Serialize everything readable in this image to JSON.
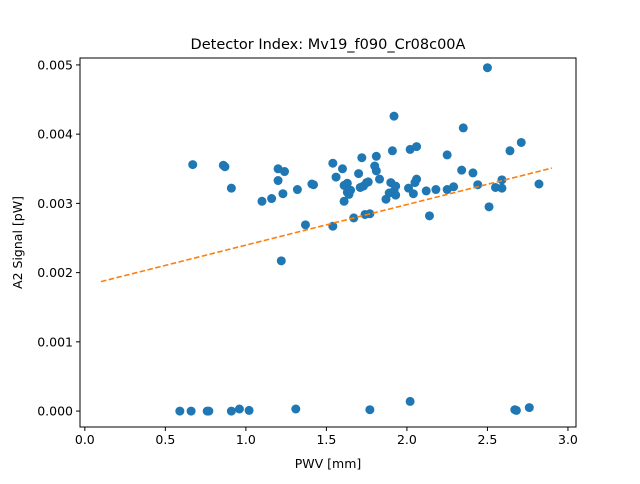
{
  "chart_data": {
    "type": "scatter",
    "title": "Detector Index: Mv19_f090_Cr08c00A",
    "xlabel": "PWV [mm]",
    "ylabel": "A2 Signal [pW]",
    "xlim": [
      -0.03,
      3.05
    ],
    "ylim": [
      -0.00023,
      0.0051
    ],
    "x_ticks": [
      0.0,
      0.5,
      1.0,
      1.5,
      2.0,
      2.5,
      3.0
    ],
    "x_tick_labels": [
      "0.0",
      "0.5",
      "1.0",
      "1.5",
      "2.0",
      "2.5",
      "3.0"
    ],
    "y_ticks": [
      0.0,
      0.001,
      0.002,
      0.003,
      0.004,
      0.005
    ],
    "y_tick_labels": [
      "0.000",
      "0.001",
      "0.002",
      "0.003",
      "0.004",
      "0.005"
    ],
    "grid": false,
    "series": [
      {
        "name": "measurements",
        "kind": "points",
        "color": "#1f77b4",
        "points": [
          [
            0.59,
            0.0
          ],
          [
            0.66,
            0.0
          ],
          [
            0.76,
            0.0
          ],
          [
            0.77,
            0.0
          ],
          [
            0.91,
            0.0
          ],
          [
            0.96,
            3e-05
          ],
          [
            1.02,
            1e-05
          ],
          [
            1.31,
            3e-05
          ],
          [
            1.77,
            2e-05
          ],
          [
            2.02,
            0.00014
          ],
          [
            2.67,
            2e-05
          ],
          [
            2.68,
            1e-05
          ],
          [
            2.76,
            5e-05
          ],
          [
            0.67,
            0.00356
          ],
          [
            0.86,
            0.00355
          ],
          [
            0.87,
            0.00353
          ],
          [
            0.91,
            0.00322
          ],
          [
            1.1,
            0.00303
          ],
          [
            1.16,
            0.00307
          ],
          [
            1.2,
            0.0035
          ],
          [
            1.2,
            0.00333
          ],
          [
            1.22,
            0.00217
          ],
          [
            1.23,
            0.00314
          ],
          [
            1.24,
            0.00346
          ],
          [
            1.32,
            0.0032
          ],
          [
            1.37,
            0.00269
          ],
          [
            1.41,
            0.00328
          ],
          [
            1.42,
            0.00327
          ],
          [
            1.54,
            0.00358
          ],
          [
            1.54,
            0.00267
          ],
          [
            1.56,
            0.00338
          ],
          [
            1.6,
            0.0035
          ],
          [
            1.61,
            0.00326
          ],
          [
            1.61,
            0.00303
          ],
          [
            1.63,
            0.00329
          ],
          [
            1.63,
            0.00316
          ],
          [
            1.64,
            0.00313
          ],
          [
            1.65,
            0.00319
          ],
          [
            1.67,
            0.00279
          ],
          [
            1.7,
            0.00343
          ],
          [
            1.71,
            0.00323
          ],
          [
            1.72,
            0.00366
          ],
          [
            1.73,
            0.00325
          ],
          [
            1.74,
            0.00284
          ],
          [
            1.75,
            0.0033
          ],
          [
            1.76,
            0.00331
          ],
          [
            1.77,
            0.00285
          ],
          [
            1.8,
            0.00354
          ],
          [
            1.81,
            0.00347
          ],
          [
            1.81,
            0.00368
          ],
          [
            1.83,
            0.00335
          ],
          [
            1.87,
            0.00306
          ],
          [
            1.89,
            0.00315
          ],
          [
            1.9,
            0.0033
          ],
          [
            1.91,
            0.00376
          ],
          [
            1.92,
            0.00426
          ],
          [
            1.92,
            0.00318
          ],
          [
            1.93,
            0.00312
          ],
          [
            1.93,
            0.00325
          ],
          [
            2.01,
            0.00322
          ],
          [
            2.02,
            0.00378
          ],
          [
            2.04,
            0.00314
          ],
          [
            2.05,
            0.0033
          ],
          [
            2.06,
            0.00335
          ],
          [
            2.06,
            0.00382
          ],
          [
            2.12,
            0.00318
          ],
          [
            2.14,
            0.00282
          ],
          [
            2.18,
            0.0032
          ],
          [
            2.25,
            0.0037
          ],
          [
            2.25,
            0.0032
          ],
          [
            2.29,
            0.00324
          ],
          [
            2.34,
            0.00348
          ],
          [
            2.35,
            0.00409
          ],
          [
            2.41,
            0.00344
          ],
          [
            2.44,
            0.00327
          ],
          [
            2.5,
            0.00496
          ],
          [
            2.51,
            0.00295
          ],
          [
            2.55,
            0.00323
          ],
          [
            2.59,
            0.00334
          ],
          [
            2.59,
            0.00322
          ],
          [
            2.64,
            0.00376
          ],
          [
            2.71,
            0.00388
          ],
          [
            2.82,
            0.00328
          ]
        ]
      },
      {
        "name": "linear fit",
        "kind": "line",
        "style": "dashed",
        "color": "#ff7f0e",
        "x": [
          0.1,
          2.9
        ],
        "y": [
          0.00187,
          0.00351
        ]
      }
    ]
  }
}
